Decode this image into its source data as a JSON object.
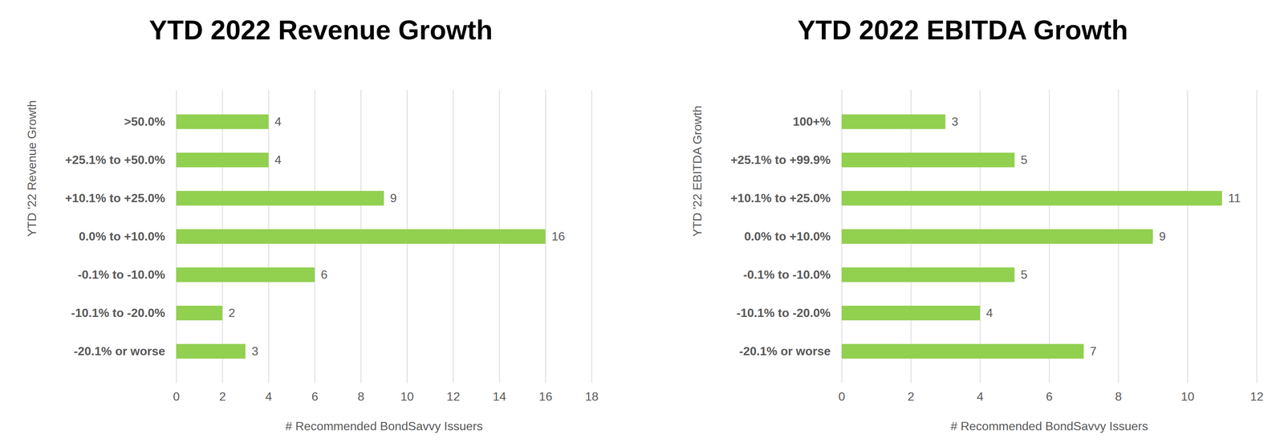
{
  "chart_data": [
    {
      "type": "bar",
      "orientation": "horizontal",
      "title": "YTD 2022 Revenue Growth",
      "x_label": "# Recommended BondSavvy Issuers",
      "y_label": "YTD '22 Revenue Growth",
      "categories": [
        ">50.0%",
        "+25.1% to +50.0%",
        "+10.1% to +25.0%",
        "0.0% to +10.0%",
        "-0.1% to -10.0%",
        "-10.1% to -20.0%",
        "-20.1% or worse"
      ],
      "values": [
        4,
        4,
        9,
        16,
        6,
        2,
        3
      ],
      "color": "#92d050",
      "xlim": [
        0,
        18
      ],
      "xticks": [
        0,
        2,
        4,
        6,
        8,
        10,
        12,
        14,
        16,
        18
      ],
      "grid": true,
      "data_labels": true
    },
    {
      "type": "bar",
      "orientation": "horizontal",
      "title": "YTD 2022 EBITDA Growth",
      "x_label": "# Recommended BondSavvy Issuers",
      "y_label": "YTD '22 EBITDA Growth",
      "categories": [
        "100+%",
        "+25.1% to +99.9%",
        "+10.1% to +25.0%",
        "0.0% to +10.0%",
        "-0.1% to -10.0%",
        "-10.1% to -20.0%",
        "-20.1% or worse"
      ],
      "values": [
        3,
        5,
        11,
        9,
        5,
        4,
        7
      ],
      "color": "#92d050",
      "xlim": [
        0,
        12
      ],
      "xticks": [
        0,
        2,
        4,
        6,
        8,
        10,
        12
      ],
      "grid": true,
      "data_labels": true
    }
  ]
}
